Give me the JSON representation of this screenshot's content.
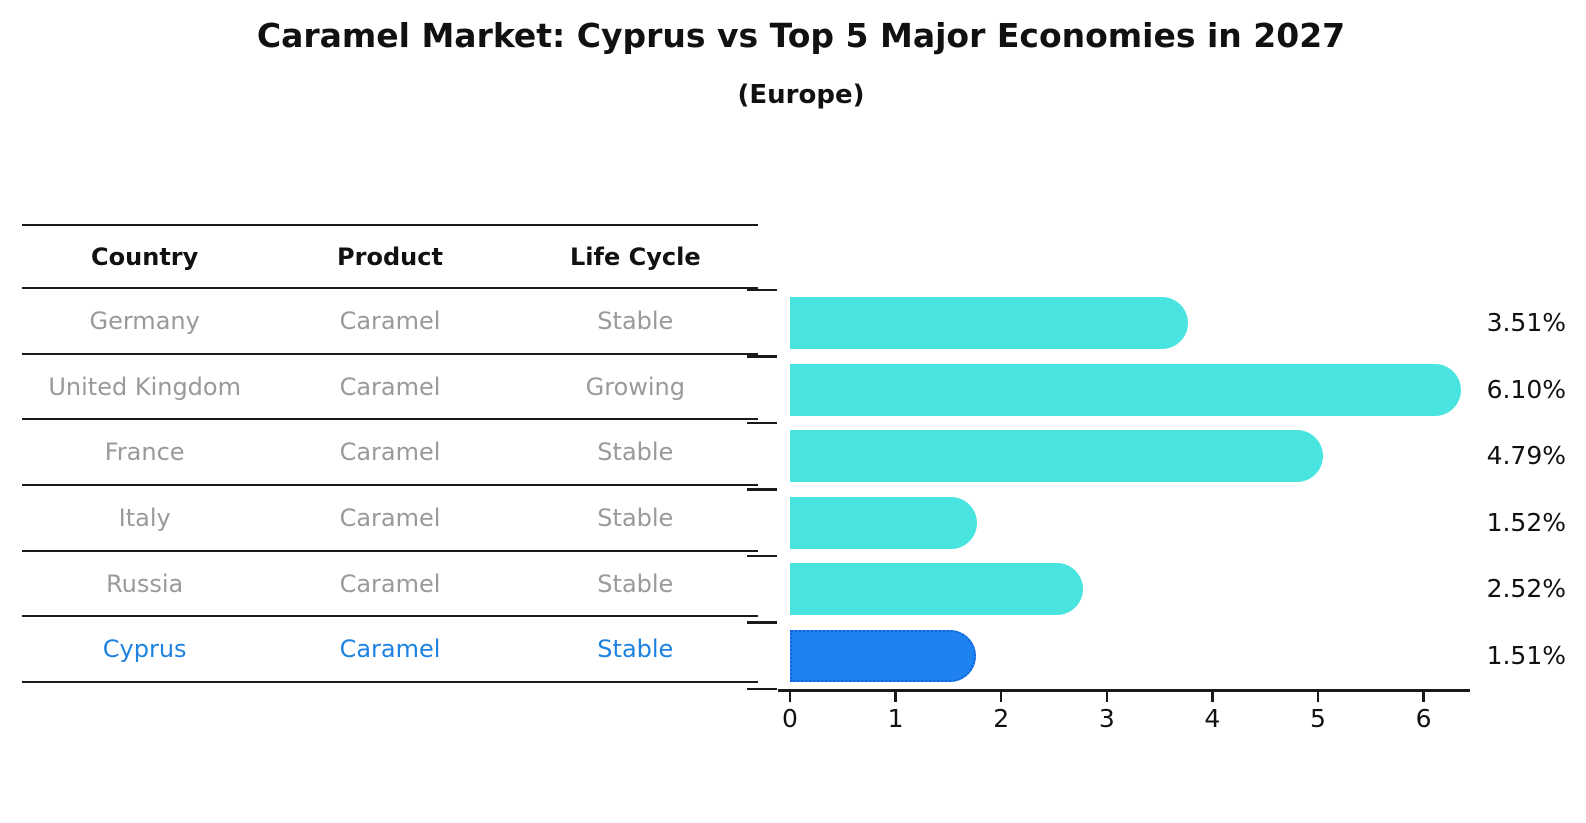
{
  "title": "Caramel Market: Cyprus vs Top 5 Major Economies in 2027",
  "subtitle": "(Europe)",
  "table": {
    "columns": [
      "Country",
      "Product",
      "Life Cycle"
    ],
    "rows": [
      {
        "country": "Germany",
        "product": "Caramel",
        "life_cycle": "Stable",
        "highlight": false
      },
      {
        "country": "United Kingdom",
        "product": "Caramel",
        "life_cycle": "Growing",
        "highlight": false
      },
      {
        "country": "France",
        "product": "Caramel",
        "life_cycle": "Stable",
        "highlight": false
      },
      {
        "country": "Italy",
        "product": "Caramel",
        "life_cycle": "Stable",
        "highlight": false
      },
      {
        "country": "Russia",
        "product": "Caramel",
        "life_cycle": "Stable",
        "highlight": false
      },
      {
        "country": "Cyprus",
        "product": "Caramel",
        "life_cycle": "Stable",
        "highlight": true
      }
    ]
  },
  "chart_data": {
    "type": "bar",
    "orientation": "horizontal",
    "title": "Caramel Market: Cyprus vs Top 5 Major Economies in 2027 (Europe)",
    "categories": [
      "Germany",
      "United Kingdom",
      "France",
      "Italy",
      "Russia",
      "Cyprus"
    ],
    "values": [
      3.51,
      6.1,
      4.79,
      1.52,
      2.52,
      1.51
    ],
    "value_labels": [
      "3.51%",
      "6.10%",
      "4.79%",
      "1.52%",
      "2.52%",
      "1.51%"
    ],
    "x_ticks": [
      "0",
      "1",
      "2",
      "3",
      "4",
      "5",
      "6"
    ],
    "xlim": [
      0,
      6.44
    ],
    "xlabel": "",
    "ylabel": "",
    "grid": false,
    "legend_position": "none",
    "highlight_index": 5,
    "bar_color": "#4AE4E0",
    "highlight_color": "#1E82F0",
    "highlight_border_color": "#1565d8"
  },
  "colors": {
    "text_primary": "#111111",
    "text_muted": "#9a9a9a",
    "highlight_text": "#1E82E0",
    "axis": "#1a1a1a"
  }
}
